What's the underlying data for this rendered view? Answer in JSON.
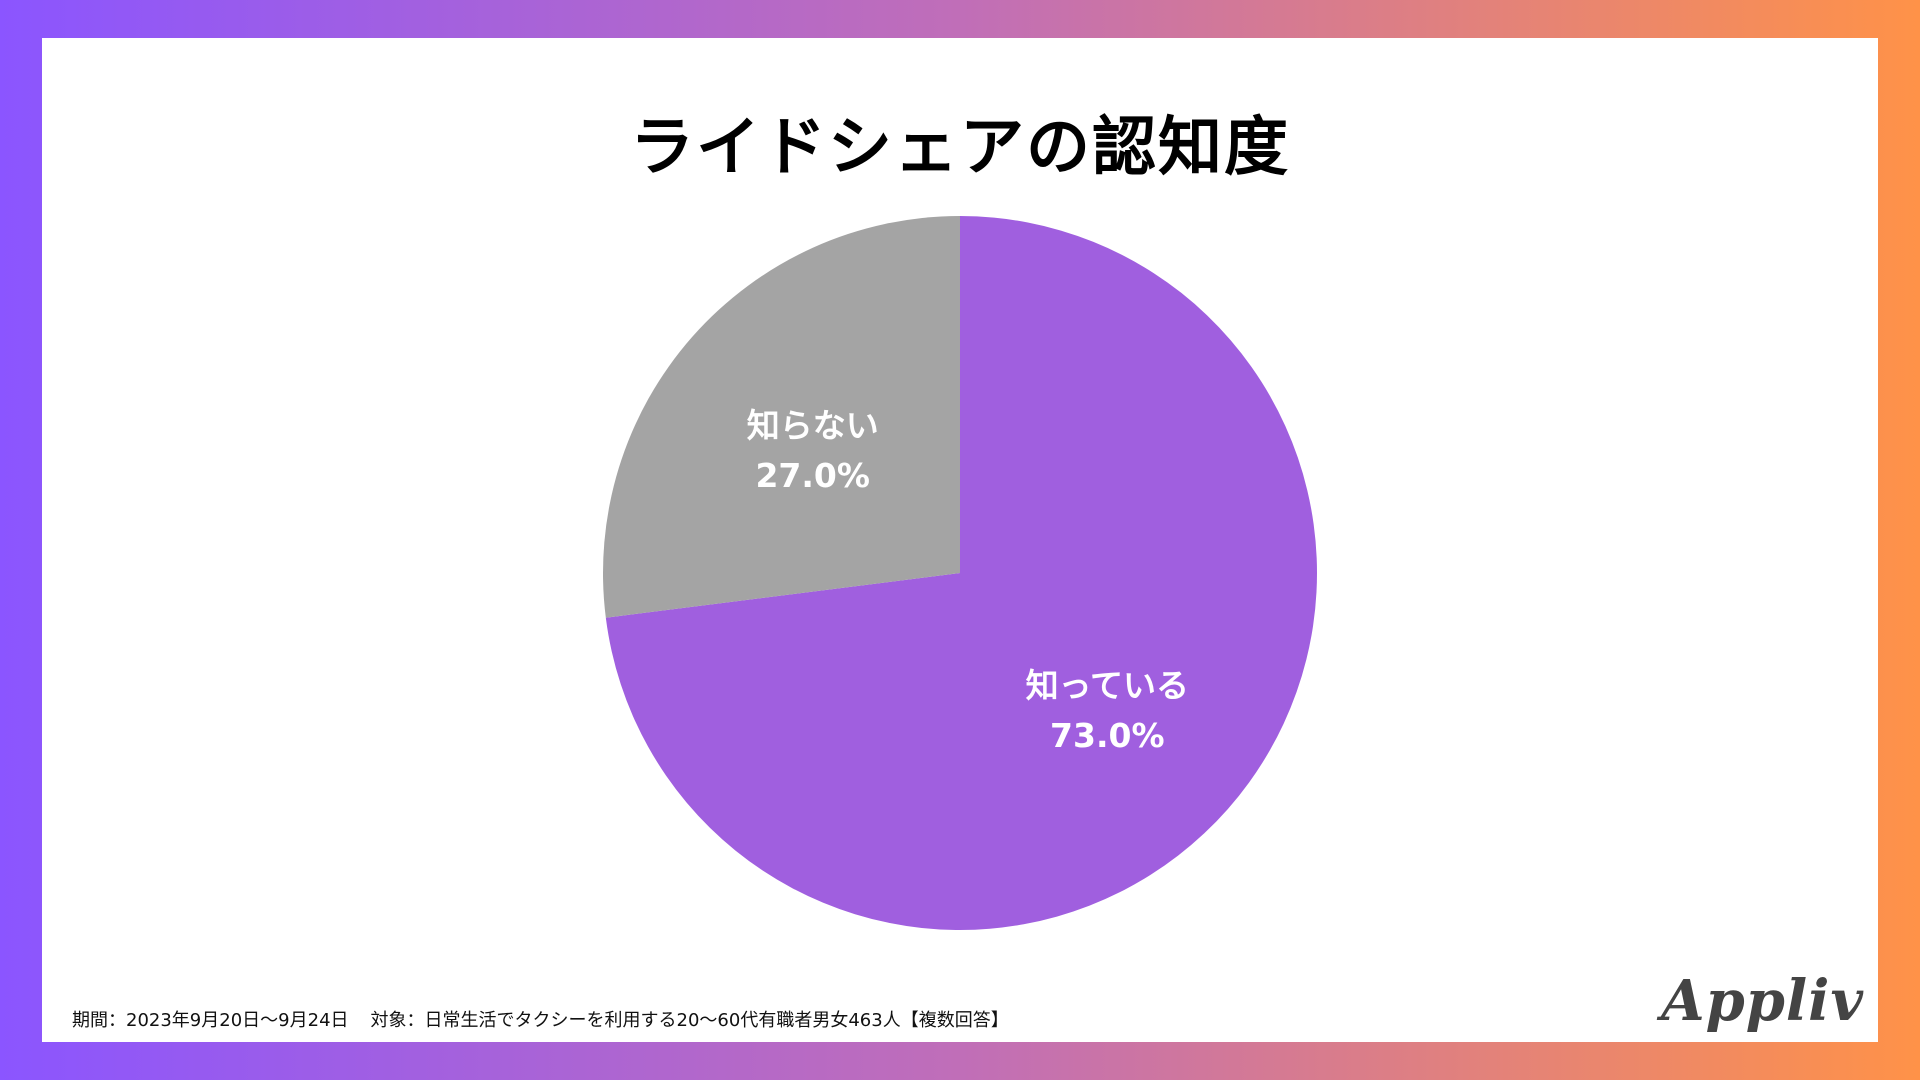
{
  "title": "ライドシェアの認知度",
  "footnote": {
    "period": "期間：2023年9月20日〜9月24日",
    "target": "対象：日常生活でタクシーを利用する20〜60代有職者男女463人【複数回答】"
  },
  "logo": "Appliv",
  "colors": {
    "gradient_left": "#8b55ff",
    "gradient_right": "#ff9248",
    "known": "#a05fdf",
    "unknown": "#a4a4a4"
  },
  "chart_data": {
    "type": "pie",
    "title": "ライドシェアの認知度",
    "start": "12 o'clock",
    "direction": "clockwise",
    "slices": [
      {
        "label": "知っている",
        "value": 73.0,
        "value_label": "73.0%",
        "color": "#a05fdf"
      },
      {
        "label": "知らない",
        "value": 27.0,
        "value_label": "27.0%",
        "color": "#a4a4a4"
      }
    ]
  }
}
